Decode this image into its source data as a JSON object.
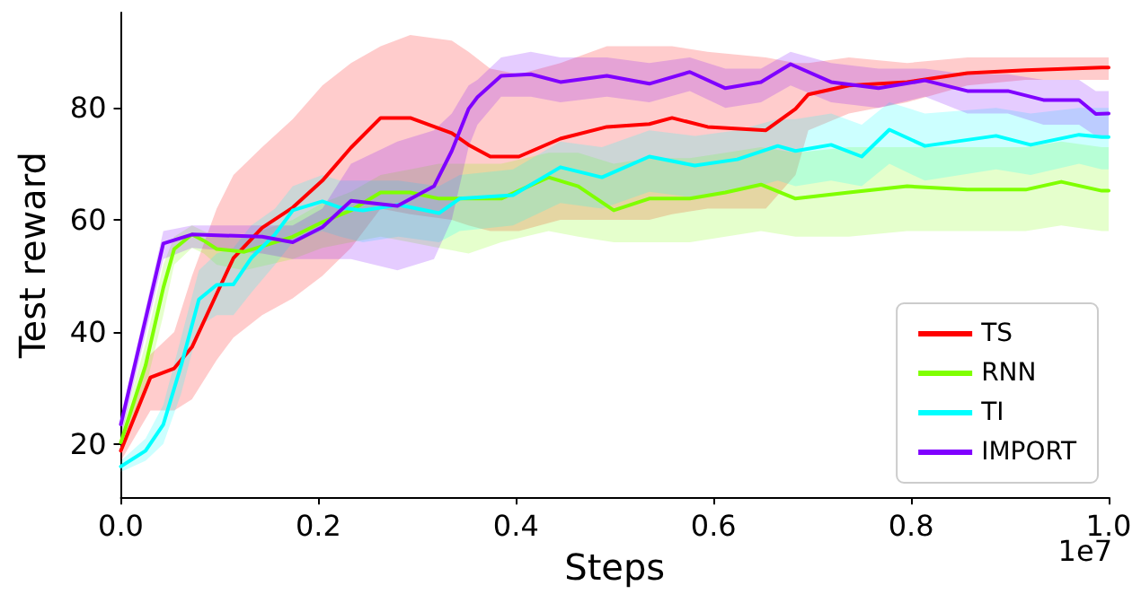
{
  "chart_data": {
    "type": "line",
    "xlabel": "Steps",
    "ylabel": "Test reward",
    "annotations": [
      "1e7"
    ],
    "xlim": [
      0,
      1
    ],
    "xticks": [
      {
        "value": 0,
        "label": "0.0"
      },
      {
        "value": 0.2,
        "label": "0.2"
      },
      {
        "value": 0.4,
        "label": "0.4"
      },
      {
        "value": 0.6,
        "label": "0.6"
      },
      {
        "value": 0.8,
        "label": "0.8"
      },
      {
        "value": 1,
        "label": "1.0"
      }
    ],
    "ylim": [
      10.5,
      97
    ],
    "yticks": [
      20,
      40,
      60,
      80
    ],
    "grid": false,
    "legend": "bottom right",
    "marker": "none",
    "series": [
      {
        "name": "TS",
        "color": "#ff0000",
        "x": [
          0,
          0.03,
          0.054,
          0.072,
          0.097,
          0.114,
          0.143,
          0.174,
          0.204,
          0.233,
          0.263,
          0.293,
          0.335,
          0.352,
          0.374,
          0.403,
          0.445,
          0.492,
          0.535,
          0.558,
          0.594,
          0.653,
          0.683,
          0.696,
          0.737,
          0.796,
          0.857,
          0.916,
          0.993,
          1.0
        ],
        "values": [
          18.8,
          31.9,
          33.5,
          37.3,
          46.8,
          53.2,
          58.6,
          62.2,
          67,
          72.9,
          78.2,
          78.2,
          75.5,
          73.4,
          71.3,
          71.3,
          74.5,
          76.6,
          77.1,
          78.2,
          76.6,
          76,
          79.8,
          82.4,
          84,
          84.6,
          86.2,
          86.7,
          87.2,
          87.2
        ],
        "upper": [
          21,
          36,
          40,
          50,
          62,
          68,
          73,
          78,
          84,
          88,
          91,
          93,
          92,
          90,
          87,
          86,
          88,
          91,
          91,
          91,
          90,
          89,
          88,
          88,
          89,
          88,
          89,
          89,
          89,
          89
        ],
        "lower": [
          17,
          26,
          26,
          28,
          35,
          39,
          43,
          46,
          50,
          55,
          62,
          61,
          60,
          59,
          58,
          58,
          60,
          60,
          60,
          61,
          62,
          62,
          68,
          76,
          79,
          81,
          84,
          85,
          85,
          85
        ]
      },
      {
        "name": "RNN",
        "color": "#7fff00",
        "x": [
          0,
          0.025,
          0.043,
          0.054,
          0.072,
          0.084,
          0.097,
          0.125,
          0.174,
          0.204,
          0.233,
          0.263,
          0.293,
          0.322,
          0.352,
          0.385,
          0.433,
          0.463,
          0.499,
          0.535,
          0.576,
          0.612,
          0.648,
          0.683,
          0.737,
          0.796,
          0.857,
          0.916,
          0.952,
          0.993,
          1.0
        ],
        "values": [
          20.3,
          34,
          47.9,
          54.8,
          57.4,
          56.3,
          54.8,
          54.3,
          57,
          59.6,
          61.7,
          64.9,
          64.9,
          63.8,
          63.8,
          63.8,
          67.6,
          66,
          61.7,
          63.8,
          63.8,
          64.9,
          66.3,
          63.8,
          64.9,
          66,
          65.4,
          65.4,
          66.8,
          65.2,
          65.2
        ],
        "upper": [
          22,
          38,
          52,
          57,
          59,
          58,
          57,
          57,
          60,
          63,
          65,
          68,
          69,
          70,
          70,
          70,
          72,
          72,
          70,
          71,
          71,
          72,
          73,
          72,
          73,
          73,
          73,
          73,
          74,
          73,
          73
        ],
        "lower": [
          18,
          30,
          43,
          52,
          55,
          54,
          52,
          51,
          53,
          55,
          56,
          57,
          56,
          55,
          54,
          56,
          58,
          57,
          56,
          56,
          56,
          57,
          58,
          57,
          57,
          58,
          58,
          58,
          59,
          58,
          58
        ]
      },
      {
        "name": "TI",
        "color": "#00ffff",
        "x": [
          0,
          0.025,
          0.043,
          0.061,
          0.079,
          0.097,
          0.114,
          0.132,
          0.156,
          0.174,
          0.204,
          0.222,
          0.245,
          0.281,
          0.322,
          0.343,
          0.397,
          0.445,
          0.487,
          0.535,
          0.581,
          0.624,
          0.665,
          0.683,
          0.719,
          0.75,
          0.778,
          0.814,
          0.886,
          0.921,
          0.97,
          0.993,
          1.0
        ],
        "values": [
          16,
          18.8,
          23.5,
          34,
          45.8,
          48.4,
          48.5,
          53.2,
          57.4,
          61.7,
          63.3,
          62.2,
          61.7,
          62.7,
          61.2,
          63.8,
          64.4,
          69.4,
          67.6,
          71.3,
          69.7,
          70.8,
          73.2,
          72.3,
          73.4,
          71.3,
          76.1,
          73.2,
          75,
          73.4,
          75.2,
          74.8,
          74.8
        ],
        "upper": [
          17,
          21,
          27,
          39,
          51,
          54,
          55,
          59,
          62,
          66,
          68,
          67,
          67,
          67,
          66,
          68,
          69,
          74,
          73,
          76,
          75,
          76,
          78,
          78,
          79,
          77,
          81,
          79,
          80,
          79,
          80,
          80,
          80
        ],
        "lower": [
          15,
          17,
          20,
          29,
          41,
          43,
          43,
          47,
          52,
          56,
          58,
          57,
          56,
          57,
          56,
          58,
          59,
          63,
          62,
          65,
          64,
          65,
          67,
          66,
          67,
          66,
          70,
          67,
          69,
          68,
          70,
          69,
          69
        ]
      },
      {
        "name": "IMPORT",
        "color": "#7f00ff",
        "x": [
          0,
          0.043,
          0.072,
          0.143,
          0.174,
          0.204,
          0.233,
          0.28,
          0.317,
          0.335,
          0.352,
          0.361,
          0.385,
          0.415,
          0.445,
          0.492,
          0.535,
          0.576,
          0.612,
          0.648,
          0.678,
          0.719,
          0.767,
          0.814,
          0.857,
          0.898,
          0.934,
          0.97,
          0.987,
          1.0
        ],
        "values": [
          23.5,
          55.8,
          57.4,
          57,
          56,
          58.7,
          63.4,
          62.5,
          66,
          72.3,
          79.8,
          81.9,
          85.7,
          86,
          84.6,
          85.7,
          84.3,
          86.4,
          83.5,
          84.6,
          87.8,
          84.6,
          83.5,
          84.9,
          83,
          83,
          81.4,
          81.4,
          78.9,
          79
        ],
        "upper": [
          25,
          58,
          59,
          59,
          59,
          62,
          70,
          74,
          76,
          79,
          84,
          85,
          89,
          90,
          89,
          89,
          88,
          89,
          87,
          87,
          90,
          88,
          87,
          87,
          86,
          86,
          85,
          85,
          83,
          83
        ],
        "lower": [
          21,
          53,
          55,
          54,
          53,
          53,
          53,
          51,
          53,
          60,
          73,
          77,
          82,
          82,
          81,
          82,
          81,
          83,
          80,
          81,
          84,
          81,
          80,
          82,
          79,
          79,
          77,
          77,
          75,
          75
        ]
      }
    ]
  }
}
